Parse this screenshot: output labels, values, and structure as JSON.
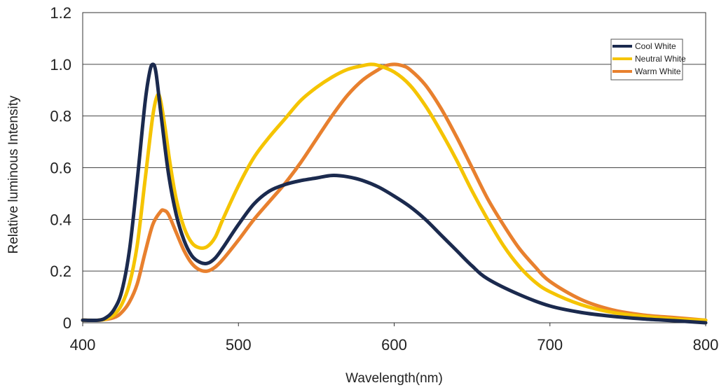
{
  "chart_data": {
    "type": "line",
    "xlabel": "Wavelength(nm)",
    "ylabel": "Relative luminous Intensity",
    "xlim": [
      400,
      800
    ],
    "ylim": [
      0,
      1.2
    ],
    "xticks": [
      400,
      500,
      600,
      700,
      800
    ],
    "yticks": [
      0,
      0.2,
      0.4,
      0.6,
      0.8,
      1.0,
      1.2
    ],
    "ytick_labels": [
      "0",
      "0.2",
      "0.4",
      "0.6",
      "0.8",
      "1.0",
      "1.2"
    ],
    "grid": "horizontal",
    "legend_position": "top-right",
    "series": [
      {
        "name": "Cool White",
        "color": "#1b2a4e",
        "x": [
          400,
          410,
          415,
          420,
          425,
          430,
          435,
          440,
          443,
          445,
          447,
          450,
          455,
          460,
          465,
          470,
          475,
          480,
          485,
          490,
          500,
          510,
          520,
          530,
          540,
          550,
          560,
          570,
          580,
          590,
          600,
          610,
          620,
          630,
          640,
          650,
          660,
          680,
          700,
          720,
          740,
          760,
          780,
          800
        ],
        "y": [
          0.01,
          0.01,
          0.02,
          0.05,
          0.12,
          0.28,
          0.55,
          0.85,
          0.97,
          1.0,
          0.97,
          0.82,
          0.58,
          0.42,
          0.32,
          0.26,
          0.235,
          0.23,
          0.25,
          0.29,
          0.38,
          0.46,
          0.51,
          0.535,
          0.55,
          0.56,
          0.57,
          0.565,
          0.55,
          0.525,
          0.49,
          0.45,
          0.4,
          0.34,
          0.28,
          0.22,
          0.17,
          0.11,
          0.065,
          0.04,
          0.025,
          0.015,
          0.008,
          0.0
        ]
      },
      {
        "name": "Neutral White",
        "color": "#f5c400",
        "x": [
          400,
          410,
          415,
          420,
          425,
          430,
          435,
          440,
          445,
          448,
          450,
          453,
          456,
          460,
          465,
          470,
          475,
          480,
          485,
          490,
          500,
          510,
          520,
          530,
          540,
          550,
          560,
          570,
          580,
          585,
          590,
          600,
          610,
          620,
          630,
          640,
          650,
          660,
          670,
          680,
          690,
          700,
          720,
          740,
          760,
          780,
          800
        ],
        "y": [
          0.01,
          0.01,
          0.015,
          0.03,
          0.07,
          0.15,
          0.3,
          0.55,
          0.8,
          0.88,
          0.86,
          0.75,
          0.62,
          0.48,
          0.37,
          0.31,
          0.29,
          0.295,
          0.33,
          0.4,
          0.53,
          0.64,
          0.72,
          0.79,
          0.86,
          0.91,
          0.95,
          0.98,
          0.995,
          1.0,
          0.995,
          0.97,
          0.92,
          0.84,
          0.74,
          0.63,
          0.51,
          0.4,
          0.3,
          0.22,
          0.16,
          0.12,
          0.07,
          0.04,
          0.025,
          0.015,
          0.01
        ]
      },
      {
        "name": "Warm White",
        "color": "#e8802e",
        "x": [
          400,
          410,
          420,
          425,
          430,
          435,
          440,
          445,
          450,
          452,
          455,
          460,
          465,
          470,
          475,
          480,
          485,
          490,
          500,
          510,
          520,
          530,
          540,
          550,
          560,
          570,
          580,
          590,
          595,
          600,
          605,
          610,
          620,
          630,
          640,
          650,
          660,
          670,
          680,
          690,
          700,
          720,
          740,
          760,
          780,
          800
        ],
        "y": [
          0.01,
          0.01,
          0.02,
          0.04,
          0.08,
          0.15,
          0.27,
          0.38,
          0.43,
          0.435,
          0.42,
          0.35,
          0.28,
          0.23,
          0.205,
          0.2,
          0.215,
          0.245,
          0.32,
          0.4,
          0.47,
          0.54,
          0.62,
          0.71,
          0.8,
          0.88,
          0.94,
          0.98,
          0.995,
          1.0,
          0.995,
          0.98,
          0.92,
          0.83,
          0.72,
          0.6,
          0.48,
          0.38,
          0.29,
          0.22,
          0.16,
          0.09,
          0.05,
          0.03,
          0.02,
          0.01
        ]
      }
    ]
  }
}
